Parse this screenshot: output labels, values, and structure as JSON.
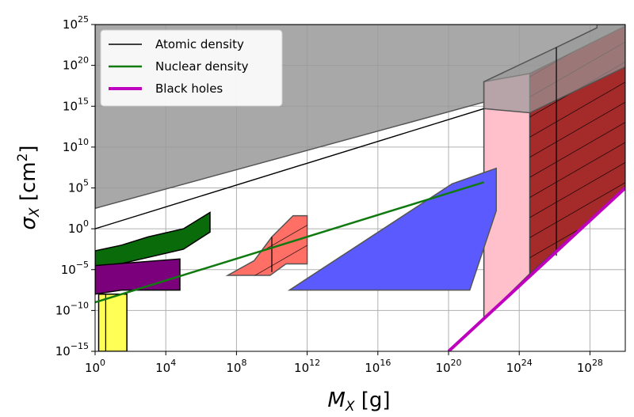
{
  "chart_data": {
    "type": "area",
    "title": "",
    "xlabel": "M_X [g]",
    "ylabel": "σ_X [cm²]",
    "x_scale": "log10",
    "y_scale": "log10",
    "xlim_log10": [
      0,
      30
    ],
    "ylim_log10": [
      -15,
      25
    ],
    "x_ticks": [
      {
        "exp": 0,
        "base": "10",
        "sup": "0"
      },
      {
        "exp": 4,
        "base": "10",
        "sup": "4"
      },
      {
        "exp": 8,
        "base": "10",
        "sup": "8"
      },
      {
        "exp": 12,
        "base": "10",
        "sup": "12"
      },
      {
        "exp": 16,
        "base": "10",
        "sup": "16"
      },
      {
        "exp": 20,
        "base": "10",
        "sup": "20"
      },
      {
        "exp": 24,
        "base": "10",
        "sup": "24"
      },
      {
        "exp": 28,
        "base": "10",
        "sup": "28"
      }
    ],
    "y_ticks": [
      {
        "exp": -15,
        "base": "10",
        "sup": "−15"
      },
      {
        "exp": -10,
        "base": "10",
        "sup": "−10"
      },
      {
        "exp": -5,
        "base": "10",
        "sup": "−5"
      },
      {
        "exp": 0,
        "base": "10",
        "sup": "0"
      },
      {
        "exp": 5,
        "base": "10",
        "sup": "5"
      },
      {
        "exp": 10,
        "base": "10",
        "sup": "10"
      },
      {
        "exp": 15,
        "base": "10",
        "sup": "15"
      },
      {
        "exp": 20,
        "base": "10",
        "sup": "20"
      },
      {
        "exp": 25,
        "base": "10",
        "sup": "25"
      }
    ],
    "grid": true,
    "legend_position": "top-left",
    "series": [
      {
        "name": "Atomic density",
        "color": "#000000",
        "style": "thin-line",
        "points": [
          [
            0,
            0
          ],
          [
            22,
            14.7
          ]
        ]
      },
      {
        "name": "Nuclear density",
        "color": "#107a10",
        "style": "medium-line",
        "points": [
          [
            0,
            -9
          ],
          [
            22,
            5.7
          ]
        ]
      },
      {
        "name": "Black holes",
        "color": "#bf00bf",
        "style": "thick-line",
        "points": [
          [
            20,
            -15
          ],
          [
            30,
            5
          ]
        ]
      }
    ],
    "regions": [
      {
        "name": "grey-excluded",
        "color": "#999999",
        "opacity": 0.85,
        "edge": "#555555",
        "points": [
          [
            0,
            25
          ],
          [
            30,
            25
          ],
          [
            30,
            24.6
          ],
          [
            22,
            15.5
          ],
          [
            0,
            2.5
          ]
        ]
      },
      {
        "name": "pink",
        "color": "#ffc0cb",
        "opacity": 1,
        "edge": "#444444",
        "points": [
          [
            22,
            -11
          ],
          [
            22,
            18
          ],
          [
            24.6,
            19
          ],
          [
            24.6,
            -5.5
          ]
        ]
      },
      {
        "name": "darkred-hatched",
        "color": "#a52a2a",
        "opacity": 1,
        "edge": "#444444",
        "points": [
          [
            24.6,
            -5.5
          ],
          [
            24.6,
            19
          ],
          [
            30,
            24.8
          ],
          [
            30,
            5
          ]
        ]
      },
      {
        "name": "grey-top-right",
        "color": "#999999",
        "opacity": 0.7,
        "edge": "#555555",
        "points": [
          [
            22,
            18
          ],
          [
            26.1,
            22.2
          ],
          [
            28.4,
            24.6
          ],
          [
            28.4,
            25
          ],
          [
            30,
            25
          ],
          [
            30,
            19.8
          ],
          [
            24.6,
            14.2
          ],
          [
            22,
            14.7
          ]
        ]
      },
      {
        "name": "blue",
        "color": "#5a5aff",
        "opacity": 1,
        "edge": "#555555",
        "points": [
          [
            11,
            -7.5
          ],
          [
            20.2,
            5.5
          ],
          [
            22.7,
            7.4
          ],
          [
            22.7,
            2.2
          ],
          [
            21.2,
            -7.5
          ]
        ]
      },
      {
        "name": "red-hatched",
        "color": "#ff6f66",
        "opacity": 1,
        "edge": "#555555",
        "points": [
          [
            7.5,
            -5.7
          ],
          [
            9,
            -3.9
          ],
          [
            10,
            -1
          ],
          [
            11.2,
            1.6
          ],
          [
            12,
            1.6
          ],
          [
            12,
            -4.3
          ],
          [
            10.8,
            -4.3
          ],
          [
            9.9,
            -5.7
          ]
        ]
      },
      {
        "name": "green",
        "color": "#0a6b0a",
        "opacity": 1,
        "edge": "#000000",
        "points": [
          [
            0,
            -2.7
          ],
          [
            1.5,
            -2
          ],
          [
            3,
            -1
          ],
          [
            5,
            0
          ],
          [
            6.5,
            2
          ],
          [
            6.5,
            -0.4
          ],
          [
            5,
            -2.5
          ],
          [
            3,
            -3.5
          ],
          [
            1,
            -4.5
          ],
          [
            0,
            -4.5
          ]
        ]
      },
      {
        "name": "purple",
        "color": "#7b007b",
        "opacity": 1,
        "edge": "#000000",
        "points": [
          [
            0,
            -4.5
          ],
          [
            4.8,
            -3.7
          ],
          [
            4.8,
            -7.5
          ],
          [
            1.5,
            -7.5
          ],
          [
            0,
            -8
          ]
        ]
      },
      {
        "name": "yellow",
        "color": "#ffff55",
        "opacity": 1,
        "edge": "#000000",
        "points": [
          [
            0.2,
            -8
          ],
          [
            1.8,
            -8
          ],
          [
            1.8,
            -15
          ],
          [
            0.2,
            -15
          ]
        ]
      }
    ]
  }
}
